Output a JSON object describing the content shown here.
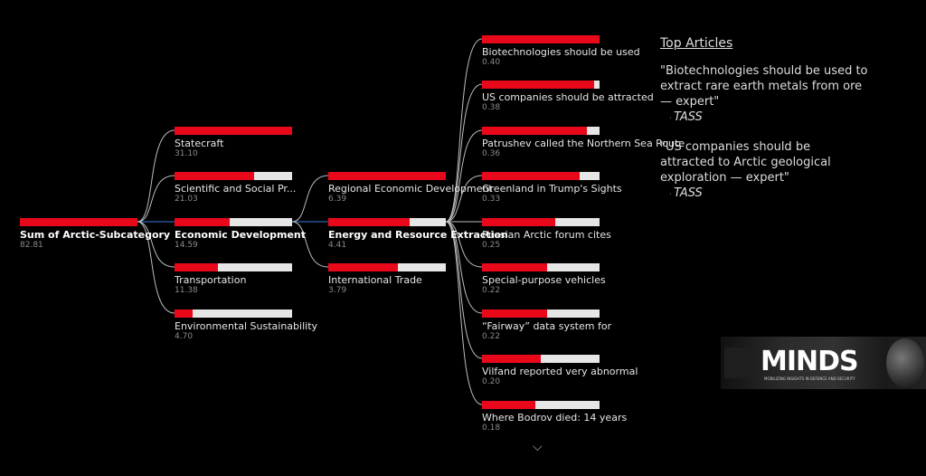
{
  "colors": {
    "bar_fill": "#e8081a",
    "bar_track": "#e6e6e6",
    "link_line": "#bdbdbd",
    "active_link": "#3a7bd5"
  },
  "tree": {
    "root": {
      "label": "Sum of Arctic-Subcategory",
      "value": "82.81",
      "fill": 1.0
    },
    "level1": [
      {
        "label": "Statecraft",
        "value": "31.10",
        "fill": 1.0
      },
      {
        "label": "Scientific and Social Pr...",
        "value": "21.03",
        "fill": 0.68
      },
      {
        "label": "Economic Development",
        "value": "14.59",
        "fill": 0.47,
        "active": true
      },
      {
        "label": "Transportation",
        "value": "11.38",
        "fill": 0.37
      },
      {
        "label": "Environmental Sustainability",
        "value": "4.70",
        "fill": 0.15
      }
    ],
    "level2": [
      {
        "label": "Regional Economic Development",
        "value": "6.39",
        "fill": 1.0
      },
      {
        "label": "Energy and Resource Extraction",
        "value": "4.41",
        "fill": 0.69,
        "active": true
      },
      {
        "label": "International Trade",
        "value": "3.79",
        "fill": 0.59
      }
    ],
    "level3": [
      {
        "label": "Biotechnologies should be used",
        "value": "0.40",
        "fill": 1.0
      },
      {
        "label": "US companies should be attracted",
        "value": "0.38",
        "fill": 0.95
      },
      {
        "label": "Patrushev called the Northern Sea Route",
        "value": "0.36",
        "fill": 0.89
      },
      {
        "label": "Greenland in Trump's Sights",
        "value": "0.33",
        "fill": 0.83
      },
      {
        "label": "Russian Arctic forum cites",
        "value": "0.25",
        "fill": 0.62
      },
      {
        "label": "Special-purpose vehicles",
        "value": "0.22",
        "fill": 0.55
      },
      {
        "label": "“Fairway” data system for",
        "value": "0.22",
        "fill": 0.55
      },
      {
        "label": "Vilfand reported very abnormal",
        "value": "0.20",
        "fill": 0.5
      },
      {
        "label": "Where Bodrov died: 14 years",
        "value": "0.18",
        "fill": 0.45
      }
    ]
  },
  "top_articles": {
    "title": "Top Articles",
    "items": [
      {
        "text": "\"Biotechnologies should be used to extract rare earth metals from ore — expert\"",
        "source": "TASS"
      },
      {
        "text": "\"US companies should be attracted to Arctic geological exploration — expert\"",
        "source": "TASS"
      }
    ]
  },
  "logo": {
    "text": "MINDS",
    "subtitle": "MOBILIZING INSIGHTS IN DEFENCE AND SECURITY"
  },
  "icons": {
    "scroll_down": "chevron-down-icon"
  }
}
